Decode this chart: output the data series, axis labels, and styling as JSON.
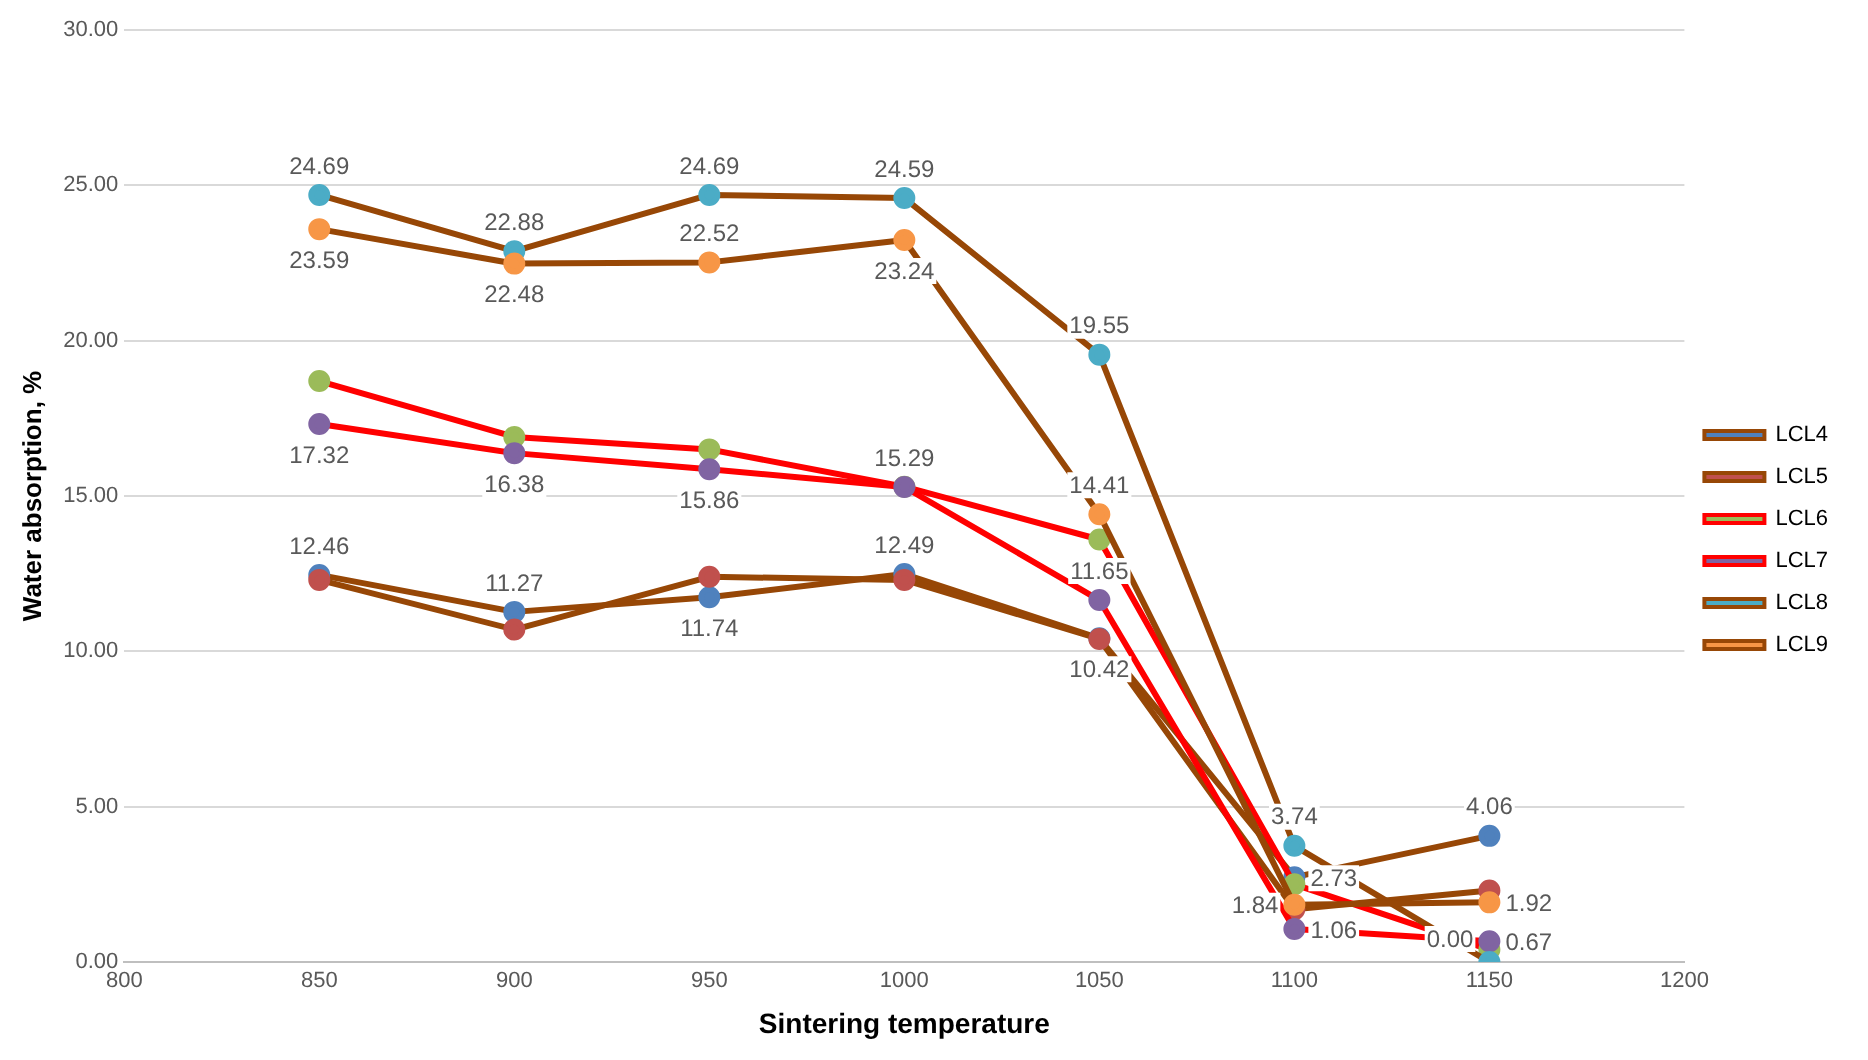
{
  "chart_data": {
    "type": "line",
    "xlabel": "Sintering temperature",
    "ylabel": "Water absorption, %",
    "x": [
      850,
      900,
      950,
      1000,
      1050,
      1100,
      1150
    ],
    "xlim": [
      800,
      1200
    ],
    "xticks": [
      800,
      850,
      900,
      950,
      1000,
      1050,
      1100,
      1150,
      1200
    ],
    "ylim": [
      0,
      30
    ],
    "yticks": [
      {
        "value": 0,
        "label": "0.00"
      },
      {
        "value": 5,
        "label": "5.00"
      },
      {
        "value": 10,
        "label": "10.00"
      },
      {
        "value": 15,
        "label": "15.00"
      },
      {
        "value": 20,
        "label": "20.00"
      },
      {
        "value": 25,
        "label": "25.00"
      },
      {
        "value": 30,
        "label": "30.00"
      }
    ],
    "grid": "y",
    "legend": "right",
    "marker": "circle",
    "line_style": "solid",
    "series": [
      {
        "name": "LCL4",
        "color": "#974706",
        "colors": [
          "#4f81bd",
          "#4f81bd",
          "#4f81bd",
          "#4f81bd",
          "#4f81bd",
          "#4f81bd",
          "#4f81bd"
        ],
        "values": [
          12.46,
          11.27,
          11.74,
          12.49,
          10.42,
          2.73,
          4.06
        ],
        "value_labels": [
          "12.46",
          "11.27",
          "11.74",
          "12.49",
          "10.42",
          "2.73",
          "4.06"
        ]
      },
      {
        "name": "LCL5",
        "color": "#974706",
        "colors": [
          "#c0504d",
          "#c0504d",
          "#c0504d",
          "#c0504d",
          "#c0504d",
          "#c0504d",
          "#c0504d"
        ],
        "values": [
          12.3,
          10.7,
          12.4,
          12.3,
          10.4,
          1.7,
          2.3
        ]
      },
      {
        "name": "LCL6",
        "color": "#ff0000",
        "colors": [
          "#9bbb59",
          "#9bbb59",
          "#9bbb59",
          "#9bbb59",
          "#9bbb59",
          "#9bbb59",
          "#9bbb59"
        ],
        "values": [
          18.7,
          16.9,
          16.5,
          15.3,
          13.6,
          2.5,
          0.4
        ]
      },
      {
        "name": "LCL7",
        "color": "#ff0000",
        "colors": [
          "#8064a2",
          "#8064a2",
          "#8064a2",
          "#8064a2",
          "#8064a2",
          "#8064a2",
          "#8064a2"
        ],
        "values": [
          17.32,
          16.38,
          15.86,
          15.29,
          11.65,
          1.06,
          0.67
        ],
        "value_labels": [
          "17.32",
          "16.38",
          "15.86",
          "15.29",
          "11.65",
          "1.06",
          "0.67"
        ]
      },
      {
        "name": "LCL8",
        "color": "#974706",
        "colors": [
          "#4bacc6",
          "#4bacc6",
          "#4bacc6",
          "#4bacc6",
          "#4bacc6",
          "#4bacc6",
          "#4bacc6"
        ],
        "values": [
          24.69,
          22.88,
          24.69,
          24.59,
          19.55,
          3.74,
          0.0
        ],
        "value_labels": [
          "24.69",
          "22.88",
          "24.69",
          "24.59",
          "19.55",
          "3.74",
          "0.00"
        ]
      },
      {
        "name": "LCL9",
        "color": "#974706",
        "colors": [
          "#f79646",
          "#f79646",
          "#f79646",
          "#f79646",
          "#f79646",
          "#f79646",
          "#f79646"
        ],
        "values": [
          23.59,
          22.48,
          22.52,
          23.24,
          14.41,
          1.84,
          1.92
        ],
        "value_labels": [
          "23.59",
          "22.48",
          "22.52",
          "23.24",
          "14.41",
          "1.84",
          "1.92"
        ]
      }
    ]
  }
}
